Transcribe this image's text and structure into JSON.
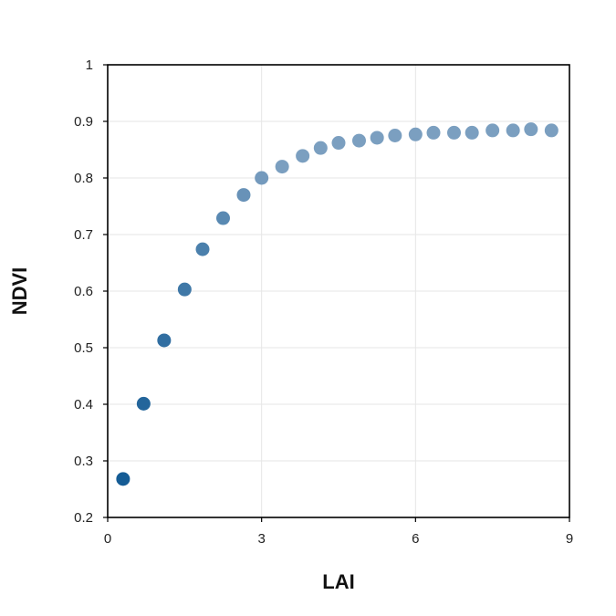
{
  "chart_data": {
    "type": "scatter",
    "title": "",
    "xlabel": "LAI",
    "ylabel": "NDVI",
    "xlim": [
      0,
      9
    ],
    "ylim": [
      0.2,
      1.0
    ],
    "xticks": [
      0,
      3,
      6,
      9
    ],
    "xtick_labels": [
      "0",
      "3",
      "6",
      "9"
    ],
    "yticks": [
      0.2,
      0.3,
      0.4,
      0.5,
      0.6,
      0.7,
      0.8,
      0.9,
      1.0
    ],
    "ytick_labels": [
      "0.2",
      "0.3",
      "0.4",
      "0.5",
      "0.6",
      "0.7",
      "0.8",
      "0.9",
      "1"
    ],
    "grid": true,
    "colors": {
      "low": "#0a5590",
      "high": "#7b9fc0",
      "grid": "#e6e6e6",
      "frame": "#000000"
    },
    "series": [
      {
        "x": [
          0.3,
          0.7,
          1.1,
          1.5,
          1.85,
          2.25,
          2.65,
          3.0,
          3.4,
          3.8,
          4.15,
          4.5,
          4.9,
          5.25,
          5.6,
          6.0,
          6.35,
          6.75,
          7.1,
          7.5,
          7.9,
          8.25,
          8.65
        ],
        "y": [
          0.268,
          0.401,
          0.513,
          0.603,
          0.674,
          0.729,
          0.77,
          0.8,
          0.82,
          0.839,
          0.853,
          0.862,
          0.866,
          0.871,
          0.875,
          0.877,
          0.88,
          0.88,
          0.88,
          0.884,
          0.884,
          0.886,
          0.884
        ]
      }
    ]
  }
}
